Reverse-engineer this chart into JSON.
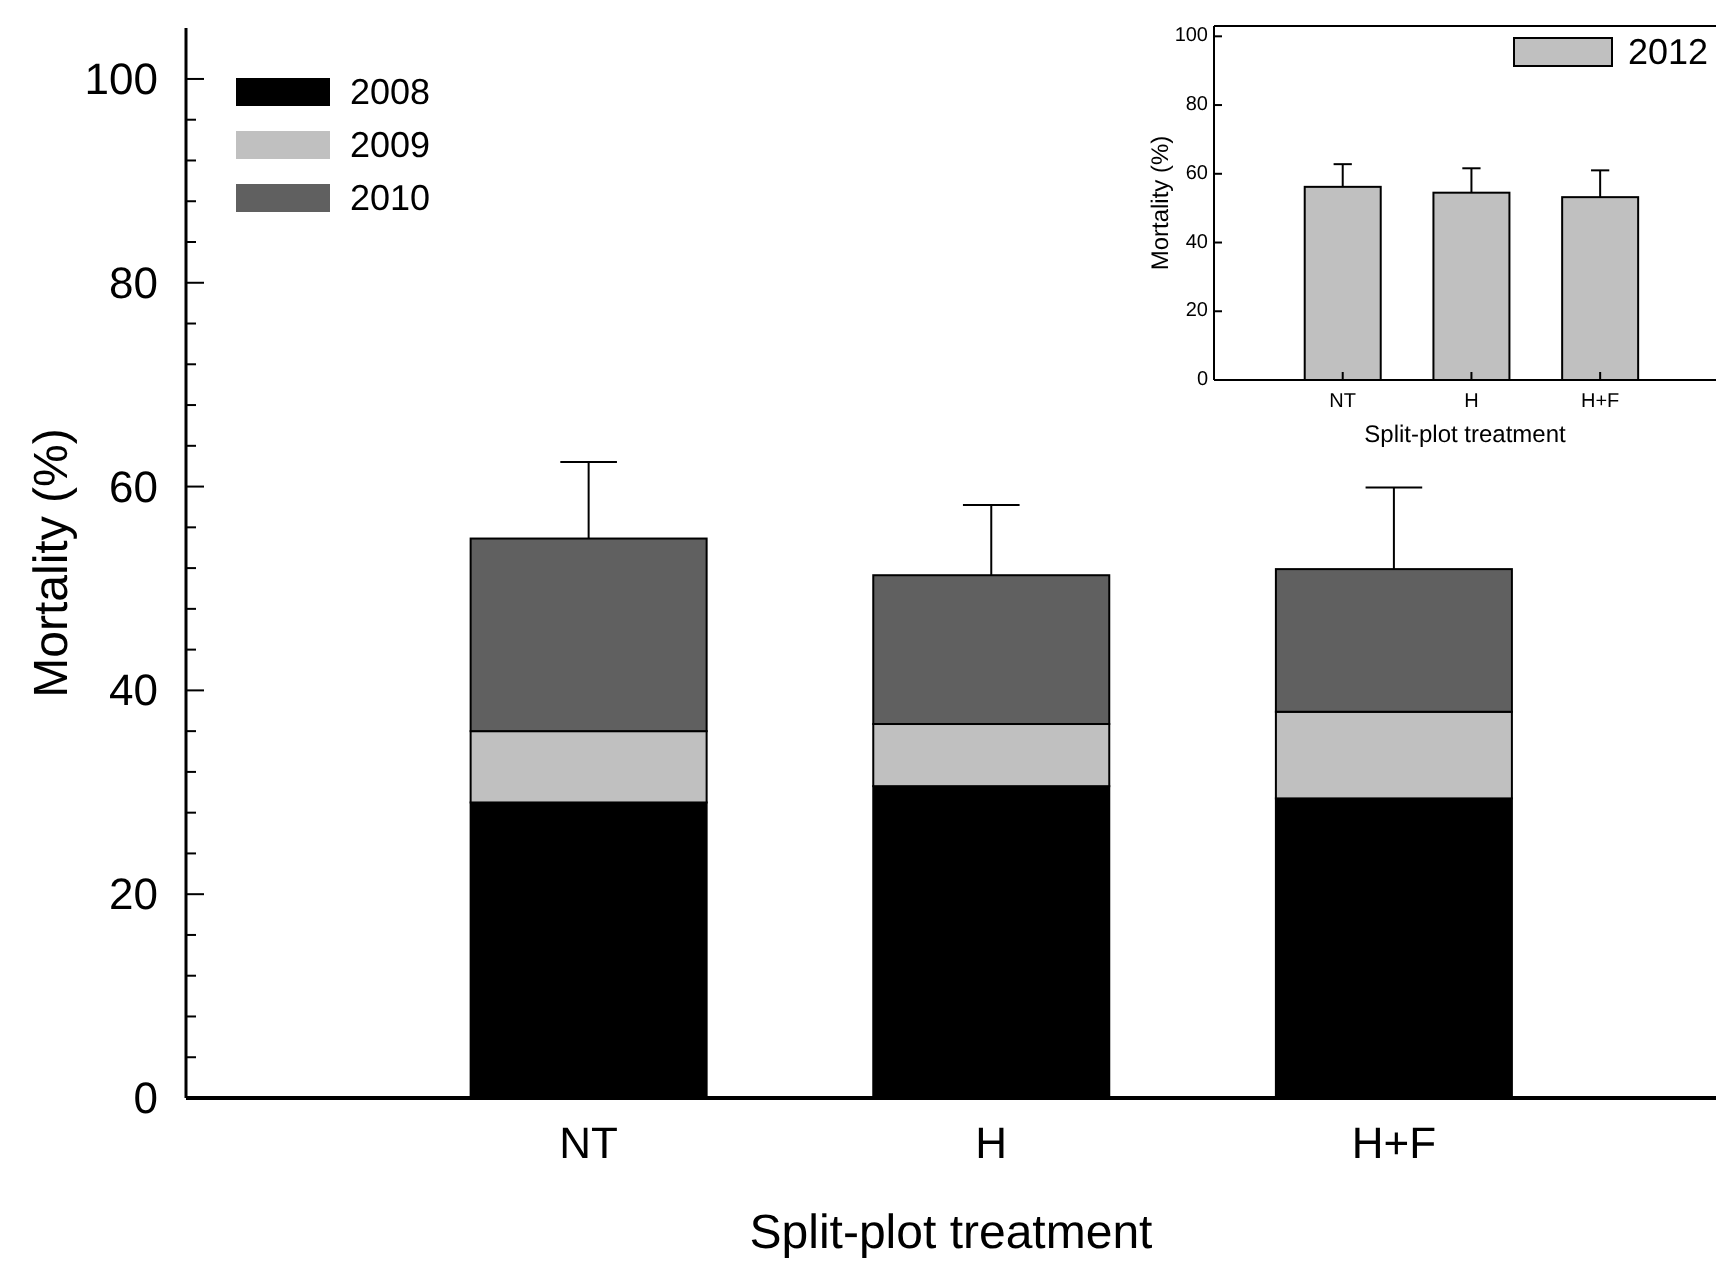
{
  "chart_data": [
    {
      "type": "bar",
      "stacked": true,
      "xlabel": "Split-plot treatment",
      "ylabel": "Mortality (%)",
      "categories": [
        "NT",
        "H",
        "H+F"
      ],
      "series": [
        {
          "name": "2008",
          "color": "#000000",
          "values": [
            29.0,
            30.6,
            29.4
          ]
        },
        {
          "name": "2009",
          "color": "#c0c0c0",
          "values": [
            7.0,
            6.1,
            8.5
          ]
        },
        {
          "name": "2010",
          "color": "#606060",
          "values": [
            18.9,
            14.6,
            14.0
          ],
          "errors": [
            7.5,
            6.9,
            8.0
          ]
        }
      ],
      "ylim": [
        0,
        105
      ],
      "yticks": [
        0,
        {
          "value": 4,
          "label": null
        },
        {
          "value": 8,
          "label": null
        },
        {
          "value": 12,
          "label": null
        },
        {
          "value": 16,
          "label": null
        },
        20,
        {
          "value": 24,
          "label": null
        },
        {
          "value": 28,
          "label": null
        },
        {
          "value": 32,
          "label": null
        },
        {
          "value": 36,
          "label": null
        },
        40,
        {
          "value": 44,
          "label": null
        },
        {
          "value": 48,
          "label": null
        },
        {
          "value": 52,
          "label": null
        },
        {
          "value": 56,
          "label": null
        },
        60,
        {
          "value": 64,
          "label": null
        },
        {
          "value": 68,
          "label": null
        },
        {
          "value": 72,
          "label": null
        },
        {
          "value": 76,
          "label": null
        },
        80,
        {
          "value": 84,
          "label": null
        },
        {
          "value": 88,
          "label": null
        },
        {
          "value": 92,
          "label": null
        },
        {
          "value": 96,
          "label": null
        },
        100
      ],
      "legend": "top left",
      "grid": false
    },
    {
      "type": "bar",
      "xlabel": "Split-plot treatment",
      "ylabel": "Mortality (%)",
      "categories": [
        "NT",
        "H",
        "H+F"
      ],
      "series": [
        {
          "name": "2012",
          "color": "#c0c0c0",
          "values": [
            56.2,
            54.5,
            53.2
          ],
          "errors": [
            6.6,
            7.1,
            7.8
          ]
        }
      ],
      "ylim": [
        0,
        103
      ],
      "yticks": [
        0,
        20,
        40,
        60,
        80,
        100
      ],
      "legend": "top right",
      "grid": false
    }
  ]
}
